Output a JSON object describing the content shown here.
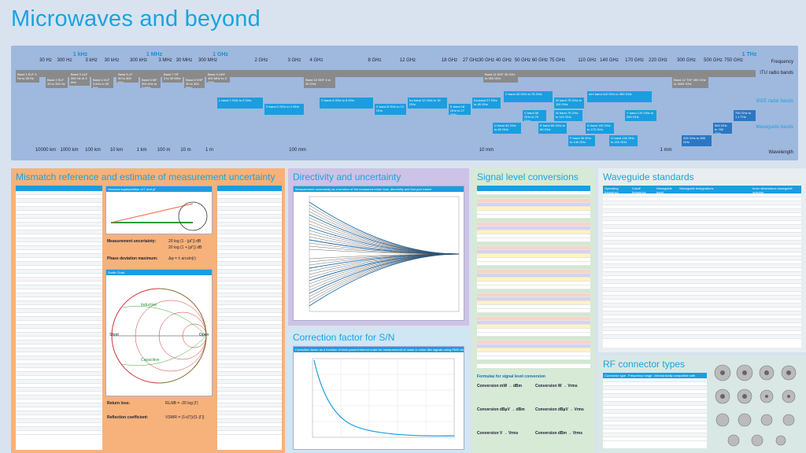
{
  "title": "Microwaves and beyond",
  "spectrum": {
    "freq_labels": [
      "30 Hz",
      "300 Hz",
      "3 kHz",
      "30 kHz",
      "300 kHz",
      "3 MHz",
      "30 MHz",
      "300 MHz",
      "2 GHz",
      "3 GHz",
      "4 GHz",
      "8 GHz",
      "12 GHz",
      "18 GHz",
      "27 GHz",
      "30 GHz",
      "40 GHz",
      "50 GHz",
      "60 GHz",
      "75 GHz",
      "110 GHz",
      "140 GHz",
      "170 GHz",
      "220 GHz",
      "300 GHz",
      "500 GHz",
      "750 GHz"
    ],
    "major_labels": [
      "1 kHz",
      "1 MHz",
      "1 GHz",
      "1 THz"
    ],
    "row_labels": {
      "frequency": "Frequency",
      "itu": "ITU radio bands",
      "ieee": "IEEE radar bands",
      "waveguide": "Waveguide bands",
      "wavelength": "Wavelength"
    },
    "wavelength_labels": [
      "10000 km",
      "1000 km",
      "100 km",
      "10 km",
      "1 km",
      "100 m",
      "10 m",
      "1 m",
      "100 mm",
      "10 mm",
      "1 mm"
    ],
    "itu_bands": [
      "Band 1 ELF 3 Hz to 30 Hz",
      "Band 2 SLF 30 to 300 Hz",
      "Band 3 ULF 300 Hz to 3 kHz",
      "Band 4 VLF 3 kHz to 30 kHz",
      "Band 5 LF 30 to 300 kHz",
      "Band 6 MF 300 kHz to 3 MHz",
      "Band 7 HF 3 to 30 MHz",
      "Band 8 VHF 30 to 300 MHz",
      "Band 9 UHF 300 MHz to 3 GHz",
      "Band 10 SHF 3 to 30 GHz",
      "Band 11 EHF 30 GHz to 300 GHz",
      "Band 12 THF 300 GHz to 3000 GHz"
    ],
    "ieee_bands": [
      "L band 1 GHz to 2 GHz",
      "S band 2 GHz to 4 GHz",
      "C band 4 GHz to 8 GHz",
      "X band 8 GHz to 12 GHz",
      "Ku band 12 GHz to 18 GHz",
      "K band 18 GHz to 27 GHz",
      "Ka band 27 GHz to 40 GHz",
      "V band 40 GHz to 75 GHz",
      "W band 75 GHz to 110 GHz",
      "mm band 110 GHz to 300 GHz"
    ],
    "waveguide_bands": [
      "U band 40 GHz to 60 GHz",
      "V band 50 GHz to 75 GHz",
      "E band 60 GHz to 90 GHz",
      "W band 75 GHz to 110 GHz",
      "F band 90 GHz to 140 GHz",
      "D band 110 GHz to 170 GHz",
      "G band 140 GHz to 220 GHz",
      "Y band 170 GHz to 260 GHz",
      "325 GHz to 500 GHz",
      "500 GHz to 750 GHz",
      "750 GHz to 1.1 THz"
    ]
  },
  "panels": {
    "mismatch": {
      "title": "Mismatch reference and estimate of measurement uncertainty",
      "vector_title": "Vectorial superposition of Γ and ρΓ",
      "meas_uncert_label": "Measurement uncertainty:",
      "meas_uncert_f1": "20 log (1 - |ρΓ|) dB",
      "meas_uncert_f2": "20 log (1 + |ρΓ|) dB",
      "phase_label": "Phase deviation maximum:",
      "phase_formula": "Δφ = ± arcsin(r)",
      "smith_title": "Smith Chart",
      "smith_labels": [
        "Inductive",
        "Capacitive",
        "Open",
        "Short"
      ],
      "return_loss_label": "Return loss:",
      "reflection_label": "Reflection coefficient:",
      "rl_formula": "RL/dB = -20 log |Γ|",
      "rc_formula": "VSWR = (1+|Γ|)/(1-|Γ|)"
    },
    "directivity": {
      "title": "Directivity and uncertainty",
      "chart_title": "Measurement uncertainty as a function of the measured return loss, directivity and test port match"
    },
    "correction": {
      "title": "Correction factor for S/N",
      "chart_title": "Correction factor as a function of total power/inherent noise for measurement of noise or noise-like signals using RMS detector"
    },
    "signal": {
      "title": "Signal level conversions",
      "formulas_title": "Formulas for signal level conversion",
      "formula_heads": [
        "Conversion mW → dBm",
        "Conversion W → Vrms",
        "Conversion dBµV → dBm",
        "Conversion dBµV → Vrms",
        "Conversion V → Vrms",
        "Conversion dBm → Vrms"
      ]
    },
    "waveguide": {
      "title": "Waveguide standards",
      "headers": [
        "Operating frequency",
        "Cutoff frequency",
        "Waveguide band",
        "Waveguide designations",
        "Inner dimensions waveguide opening"
      ]
    },
    "rf": {
      "title": "RF connector types",
      "headers": [
        "Connector type",
        "Frequency range",
        "Mechanically compatible with"
      ]
    }
  },
  "colors": {
    "accent": "#1aa3df",
    "band_blue": "#1a9ee0",
    "itu_grey": "#8a8a8a",
    "spectrum_bg": "#9fb8de",
    "panel_orange": "#f6b27a",
    "panel_purple": "#ccc3e6",
    "panel_green": "#d6ead6"
  }
}
